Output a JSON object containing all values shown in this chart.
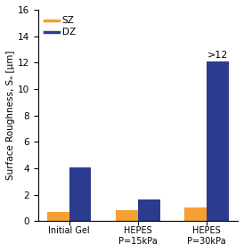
{
  "categories": [
    "Initial Gel",
    "HEPES\nP=15kPa",
    "HEPES\nP=30kPa"
  ],
  "sz_values": [
    0.7,
    0.85,
    1.0
  ],
  "dz_values": [
    4.05,
    1.65,
    12.1
  ],
  "sz_color": "#F5A030",
  "dz_color": "#2B3C8E",
  "ylabel": "Surface Roughness, Sₐ [μm]",
  "ylim": [
    0,
    16
  ],
  "yticks": [
    0,
    2,
    4,
    6,
    8,
    10,
    12,
    14,
    16
  ],
  "bar_width": 0.32,
  "annotation_text": ">12",
  "legend_labels": [
    "SZ",
    "DZ"
  ],
  "fig_width": 2.74,
  "fig_height": 2.83,
  "dpi": 100
}
